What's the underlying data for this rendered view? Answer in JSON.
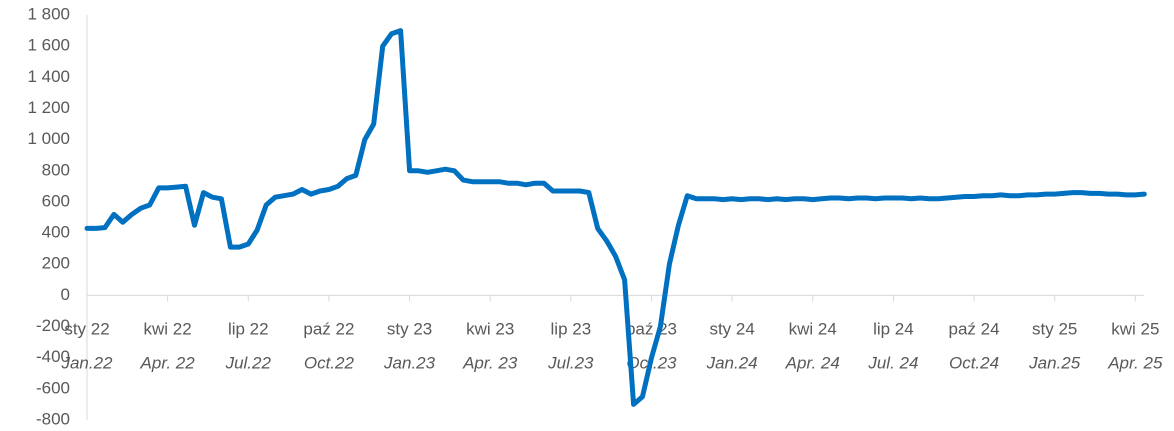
{
  "chart_data": {
    "type": "line",
    "categories": [
      "sty 22",
      null,
      null,
      null,
      null,
      null,
      null,
      null,
      null,
      "kwi 22",
      null,
      null,
      null,
      null,
      null,
      null,
      null,
      null,
      "lip 22",
      null,
      null,
      null,
      null,
      null,
      null,
      null,
      null,
      "paź 22",
      null,
      null,
      null,
      null,
      null,
      null,
      null,
      null,
      "sty 23",
      null,
      null,
      null,
      null,
      null,
      null,
      null,
      null,
      "kwi 23",
      null,
      null,
      null,
      null,
      null,
      null,
      null,
      null,
      "lip 23",
      null,
      null,
      null,
      null,
      null,
      null,
      null,
      null,
      "paź 23",
      null,
      null,
      null,
      null,
      null,
      null,
      null,
      null,
      "sty 24",
      null,
      null,
      null,
      null,
      null,
      null,
      null,
      null,
      "kwi 24",
      null,
      null,
      null,
      null,
      null,
      null,
      null,
      null,
      "lip 24",
      null,
      null,
      null,
      null,
      null,
      null,
      null,
      null,
      "paź 24",
      null,
      null,
      null,
      null,
      null,
      null,
      null,
      null,
      "sty 25",
      null,
      null,
      null,
      null,
      null,
      null,
      null,
      null,
      "kwi 25",
      null
    ],
    "categories_en": [
      "Jan.22",
      null,
      null,
      null,
      null,
      null,
      null,
      null,
      null,
      "Apr. 22",
      null,
      null,
      null,
      null,
      null,
      null,
      null,
      null,
      "Jul.22",
      null,
      null,
      null,
      null,
      null,
      null,
      null,
      null,
      "Oct.22",
      null,
      null,
      null,
      null,
      null,
      null,
      null,
      null,
      "Jan.23",
      null,
      null,
      null,
      null,
      null,
      null,
      null,
      null,
      "Apr. 23",
      null,
      null,
      null,
      null,
      null,
      null,
      null,
      null,
      "Jul.23",
      null,
      null,
      null,
      null,
      null,
      null,
      null,
      null,
      "Oct.23",
      null,
      null,
      null,
      null,
      null,
      null,
      null,
      null,
      "Jan.24",
      null,
      null,
      null,
      null,
      null,
      null,
      null,
      null,
      "Apr. 24",
      null,
      null,
      null,
      null,
      null,
      null,
      null,
      null,
      "Jul. 24",
      null,
      null,
      null,
      null,
      null,
      null,
      null,
      null,
      "Oct.24",
      null,
      null,
      null,
      null,
      null,
      null,
      null,
      null,
      "Jan.25",
      null,
      null,
      null,
      null,
      null,
      null,
      null,
      null,
      "Apr. 25",
      null
    ],
    "values": [
      430,
      430,
      435,
      520,
      470,
      520,
      560,
      580,
      690,
      690,
      695,
      700,
      450,
      660,
      630,
      620,
      310,
      310,
      330,
      420,
      580,
      630,
      640,
      650,
      680,
      650,
      670,
      680,
      700,
      750,
      770,
      1000,
      1100,
      1600,
      1680,
      1700,
      800,
      800,
      790,
      800,
      810,
      800,
      740,
      730,
      730,
      730,
      730,
      720,
      720,
      710,
      720,
      720,
      670,
      670,
      670,
      670,
      660,
      430,
      350,
      250,
      100,
      -700,
      -650,
      -400,
      -200,
      200,
      450,
      640,
      620,
      620,
      620,
      615,
      620,
      615,
      620,
      620,
      615,
      620,
      615,
      620,
      620,
      615,
      620,
      625,
      625,
      620,
      625,
      625,
      620,
      625,
      625,
      625,
      620,
      625,
      620,
      620,
      625,
      630,
      635,
      635,
      640,
      640,
      645,
      640,
      640,
      645,
      645,
      650,
      650,
      655,
      660,
      660,
      655,
      655,
      650,
      650,
      645,
      645,
      650
    ],
    "color": "#0070c0",
    "ylim": [
      -800,
      1800
    ],
    "yticks": [
      -800,
      -600,
      -400,
      -200,
      0,
      200,
      400,
      600,
      800,
      {
        "value": 1000,
        "label": "1 000"
      },
      {
        "value": 1200,
        "label": "1 200"
      },
      {
        "value": 1400,
        "label": "1 400"
      },
      {
        "value": 1600,
        "label": "1 600"
      },
      {
        "value": 1800,
        "label": "1 800"
      }
    ]
  }
}
